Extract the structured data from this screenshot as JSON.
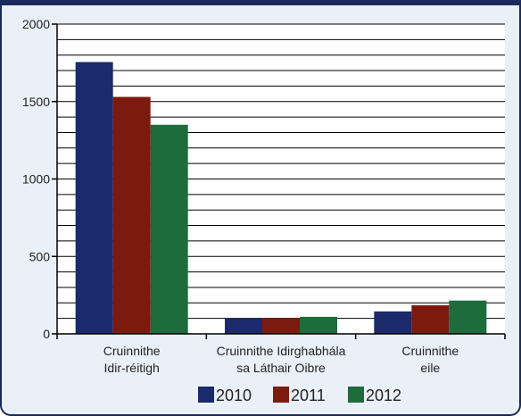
{
  "chart_data": {
    "type": "bar",
    "categories": [
      [
        "Cruinnithe",
        "Idir-réitigh"
      ],
      [
        "Cruinnithe Idirghabhála",
        "sa Láthair Oibre"
      ],
      [
        "Cruinnithe",
        "eile"
      ]
    ],
    "series": [
      {
        "name": "2010",
        "color": "#1b2a6b",
        "values": [
          1755,
          100,
          145
        ]
      },
      {
        "name": "2011",
        "color": "#7d1a0e",
        "values": [
          1530,
          100,
          185
        ]
      },
      {
        "name": "2012",
        "color": "#1e6b3c",
        "values": [
          1350,
          110,
          215
        ]
      }
    ],
    "ylim": [
      0,
      2000
    ],
    "yticks": [
      0,
      500,
      1000,
      1500,
      2000
    ],
    "minor_step": 100,
    "grid": true,
    "legend": "bottom"
  }
}
